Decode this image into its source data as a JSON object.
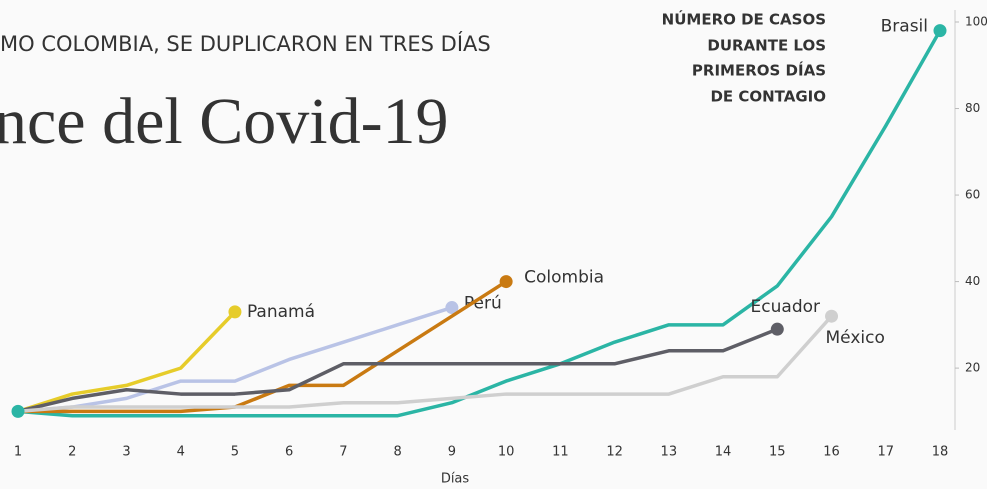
{
  "chart_data": {
    "type": "line",
    "subtitle": "MO COLOMBIA, SE DUPLICARON EN TRES DÍAS",
    "title": "nce del Covid-19",
    "annotation": [
      "NÚMERO DE CASOS",
      "DURANTE  LOS",
      "PRIMEROS DÍAS",
      "DE CONTAGIO"
    ],
    "x_label": "Días",
    "x": [
      1,
      2,
      3,
      4,
      5,
      6,
      7,
      8,
      9,
      10,
      11,
      12,
      13,
      14,
      15,
      16,
      17,
      18
    ],
    "xlim": [
      1,
      18
    ],
    "xticks": [
      1,
      2,
      3,
      4,
      5,
      6,
      7,
      8,
      9,
      10,
      11,
      12,
      13,
      14,
      15,
      16,
      17,
      18
    ],
    "ylim": [
      5,
      100
    ],
    "yticks": [
      20,
      40,
      60,
      80,
      100
    ],
    "series": [
      {
        "name": "Brasil",
        "color": "#2bb5a5",
        "values": [
          10,
          9,
          9,
          9,
          9,
          9,
          9,
          9,
          12,
          17,
          21,
          26,
          30,
          30,
          39,
          55,
          76,
          98
        ]
      },
      {
        "name": "Panamá",
        "color": "#e6cc2a",
        "values": [
          10,
          14,
          16,
          20,
          33,
          null,
          null,
          null,
          null,
          null,
          null,
          null,
          null,
          null,
          null,
          null,
          null,
          null
        ]
      },
      {
        "name": "Perú",
        "color": "#b9c3e6",
        "values": [
          10,
          11,
          13,
          17,
          17,
          22,
          26,
          30,
          34,
          null,
          null,
          null,
          null,
          null,
          null,
          null,
          null,
          null
        ]
      },
      {
        "name": "Colombia",
        "color": "#c97a12",
        "values": [
          10,
          10,
          10,
          10,
          11,
          16,
          16,
          24,
          32,
          40,
          null,
          null,
          null,
          null,
          null,
          null,
          null,
          null
        ]
      },
      {
        "name": "Ecuador",
        "color": "#5e5e66",
        "values": [
          10,
          13,
          15,
          14,
          14,
          15,
          21,
          21,
          21,
          21,
          21,
          21,
          24,
          24,
          29,
          null,
          null,
          null
        ]
      },
      {
        "name": "México",
        "color": "#cfcfcf",
        "values": [
          10,
          11,
          11,
          11,
          11,
          11,
          12,
          12,
          13,
          14,
          14,
          14,
          14,
          18,
          18,
          32,
          null,
          null
        ]
      }
    ]
  }
}
